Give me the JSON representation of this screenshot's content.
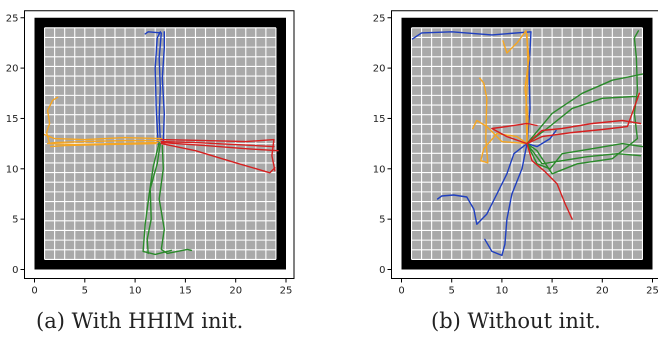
{
  "chart_data": [
    {
      "type": "line",
      "panel": "a",
      "caption": "(a) With HHIM init.",
      "xlim": [
        0,
        25
      ],
      "ylim": [
        0,
        25
      ],
      "xticks": [
        0,
        5,
        10,
        15,
        20,
        25
      ],
      "yticks": [
        0,
        5,
        10,
        15,
        20,
        25
      ],
      "series": [
        {
          "color": "#1f3fbf",
          "trajectories": [
            [
              [
                12.5,
                12.8
              ],
              [
                12.4,
                15
              ],
              [
                12.5,
                18
              ],
              [
                12.4,
                21
              ],
              [
                12.6,
                23.5
              ],
              [
                11.3,
                23.6
              ],
              [
                11.0,
                23.4
              ]
            ],
            [
              [
                12.8,
                12.6
              ],
              [
                12.9,
                15.5
              ],
              [
                12.7,
                19
              ],
              [
                12.9,
                22
              ],
              [
                12.9,
                23.6
              ]
            ],
            [
              [
                12.3,
                12.4
              ],
              [
                12.1,
                16
              ],
              [
                12.0,
                20
              ],
              [
                12.2,
                23.0
              ],
              [
                12.5,
                23.6
              ]
            ]
          ]
        },
        {
          "color": "#f5a623",
          "trajectories": [
            [
              [
                12.5,
                12.8
              ],
              [
                9,
                12.8
              ],
              [
                5,
                12.7
              ],
              [
                2,
                12.6
              ],
              [
                1.3,
                12.5
              ]
            ],
            [
              [
                12.3,
                12.6
              ],
              [
                8,
                12.5
              ],
              [
                4,
                12.4
              ],
              [
                1.5,
                12.5
              ],
              [
                1.2,
                13.6
              ],
              [
                1.5,
                14.5
              ],
              [
                1.3,
                15.8
              ],
              [
                1.8,
                16.8
              ],
              [
                2.3,
                17.1
              ]
            ],
            [
              [
                12.6,
                13.0
              ],
              [
                9,
                13.1
              ],
              [
                5,
                12.9
              ],
              [
                2,
                13.0
              ],
              [
                1.0,
                13.4
              ]
            ],
            [
              [
                12.1,
                12.5
              ],
              [
                7,
                12.4
              ],
              [
                3,
                12.3
              ],
              [
                1.6,
                12.2
              ]
            ]
          ]
        },
        {
          "color": "#2a8a2a",
          "trajectories": [
            [
              [
                12.5,
                12.5
              ],
              [
                12.2,
                10.5
              ],
              [
                11.5,
                8
              ],
              [
                11.6,
                5
              ],
              [
                11.2,
                3
              ],
              [
                11.3,
                1.6
              ]
            ],
            [
              [
                12.7,
                12.3
              ],
              [
                12.8,
                10
              ],
              [
                12.4,
                7
              ],
              [
                12.9,
                4
              ],
              [
                12.6,
                2
              ],
              [
                13.2,
                1.6
              ],
              [
                15.2,
                2.0
              ],
              [
                15.6,
                1.9
              ]
            ],
            [
              [
                12.4,
                12.6
              ],
              [
                11.8,
                10.2
              ],
              [
                11.4,
                7.5
              ],
              [
                11.0,
                4.5
              ],
              [
                10.8,
                1.8
              ],
              [
                12.0,
                1.5
              ],
              [
                13.6,
                1.9
              ]
            ]
          ]
        },
        {
          "color": "#d62020",
          "trajectories": [
            [
              [
                12.6,
                12.7
              ],
              [
                16,
                12.6
              ],
              [
                20,
                12.4
              ],
              [
                23.8,
                12.2
              ]
            ],
            [
              [
                12.6,
                12.5
              ],
              [
                16,
                11.8
              ],
              [
                20,
                10.6
              ],
              [
                23.4,
                9.6
              ],
              [
                23.9,
                10.1
              ]
            ],
            [
              [
                12.6,
                12.9
              ],
              [
                17,
                12.8
              ],
              [
                21,
                12.7
              ],
              [
                23.8,
                12.9
              ],
              [
                23.6,
                11.3
              ],
              [
                23.9,
                9.8
              ]
            ],
            [
              [
                12.6,
                12.6
              ],
              [
                17,
                12.3
              ],
              [
                21,
                12.0
              ],
              [
                24.2,
                11.8
              ]
            ]
          ]
        }
      ]
    },
    {
      "type": "line",
      "panel": "b",
      "caption": "(b) Without init.",
      "xlim": [
        0,
        25
      ],
      "ylim": [
        0,
        25
      ],
      "xticks": [
        0,
        5,
        10,
        15,
        20,
        25
      ],
      "yticks": [
        0,
        5,
        10,
        15,
        20,
        25
      ],
      "series": [
        {
          "color": "#1f3fbf",
          "trajectories": [
            [
              [
                12.5,
                12.5
              ],
              [
                11.2,
                11.5
              ],
              [
                10.5,
                9.5
              ],
              [
                9.5,
                7.5
              ],
              [
                8.5,
                5.5
              ],
              [
                7.5,
                4.5
              ],
              [
                7.2,
                6.0
              ],
              [
                6.5,
                7.2
              ],
              [
                5.2,
                7.4
              ],
              [
                4.0,
                7.3
              ],
              [
                3.6,
                7.0
              ]
            ],
            [
              [
                12.5,
                12.5
              ],
              [
                12.0,
                10
              ],
              [
                11.0,
                7.5
              ],
              [
                10.5,
                5
              ],
              [
                10.3,
                2.5
              ],
              [
                10.0,
                1.4
              ],
              [
                9.0,
                1.8
              ],
              [
                8.3,
                3.0
              ]
            ],
            [
              [
                12.5,
                12.5
              ],
              [
                12.8,
                16
              ],
              [
                12.7,
                20
              ],
              [
                12.9,
                23.6
              ],
              [
                9,
                23.3
              ],
              [
                5,
                23.6
              ],
              [
                2,
                23.5
              ],
              [
                1.1,
                22.9
              ]
            ],
            [
              [
                12.5,
                12.5
              ],
              [
                13.5,
                12.2
              ],
              [
                14.8,
                13.0
              ],
              [
                15.4,
                13.8
              ]
            ]
          ]
        },
        {
          "color": "#f5a623",
          "trajectories": [
            [
              [
                12.5,
                12.5
              ],
              [
                12.6,
                15
              ],
              [
                12.3,
                18
              ],
              [
                12.7,
                21
              ],
              [
                12.4,
                23.7
              ],
              [
                11.5,
                22.5
              ],
              [
                10.5,
                21.5
              ],
              [
                10.1,
                22.7
              ]
            ],
            [
              [
                12.5,
                12.5
              ],
              [
                10,
                12.7
              ],
              [
                8.5,
                14.2
              ],
              [
                7.5,
                14.8
              ],
              [
                7.1,
                14.0
              ]
            ],
            [
              [
                12.5,
                12.5
              ],
              [
                11.5,
                13.2
              ],
              [
                9.5,
                13.5
              ],
              [
                8.2,
                12.0
              ],
              [
                7.9,
                10.8
              ],
              [
                8.6,
                10.6
              ],
              [
                8.4,
                13.0
              ],
              [
                8.5,
                17.0
              ],
              [
                8.2,
                18.5
              ],
              [
                7.8,
                19.0
              ]
            ],
            [
              [
                12.5,
                12.5
              ],
              [
                12.4,
                16
              ],
              [
                12.6,
                20
              ],
              [
                12.5,
                23.4
              ]
            ]
          ]
        },
        {
          "color": "#2a8a2a",
          "trajectories": [
            [
              [
                12.5,
                12.5
              ],
              [
                14.5,
                14.0
              ],
              [
                17,
                16.0
              ],
              [
                20,
                17.0
              ],
              [
                23.5,
                17.2
              ]
            ],
            [
              [
                12.5,
                12.5
              ],
              [
                15,
                15.5
              ],
              [
                18,
                17.5
              ],
              [
                21,
                18.8
              ],
              [
                24.0,
                19.4
              ]
            ],
            [
              [
                12.5,
                12.5
              ],
              [
                14.0,
                10.5
              ],
              [
                16.0,
                10.8
              ],
              [
                18.5,
                11.2
              ],
              [
                21.5,
                11.5
              ],
              [
                23.8,
                11.3
              ]
            ],
            [
              [
                12.5,
                12.5
              ],
              [
                13.5,
                11.8
              ],
              [
                15.0,
                9.5
              ],
              [
                17.5,
                10.5
              ],
              [
                21.0,
                11.0
              ],
              [
                23.5,
                13.0
              ],
              [
                23.2,
                15.5
              ],
              [
                23.5,
                17.8
              ],
              [
                23.4,
                21.0
              ],
              [
                23.2,
                23.0
              ],
              [
                23.6,
                23.7
              ]
            ],
            [
              [
                12.5,
                12.5
              ],
              [
                13.5,
                10.5
              ],
              [
                14.8,
                10.0
              ],
              [
                16.0,
                11.5
              ],
              [
                19.0,
                12.0
              ],
              [
                22.0,
                12.5
              ],
              [
                24.0,
                12.2
              ]
            ]
          ]
        },
        {
          "color": "#d62020",
          "trajectories": [
            [
              [
                12.5,
                12.5
              ],
              [
                14.0,
                13.8
              ],
              [
                16.0,
                14.0
              ],
              [
                19.0,
                14.5
              ],
              [
                22.0,
                14.8
              ],
              [
                23.8,
                14.5
              ]
            ],
            [
              [
                12.5,
                12.5
              ],
              [
                13.0,
                10.8
              ],
              [
                14.2,
                9.8
              ],
              [
                15.5,
                8.5
              ],
              [
                16.3,
                6.5
              ],
              [
                17.0,
                5.0
              ]
            ],
            [
              [
                12.5,
                12.5
              ],
              [
                14.0,
                13.2
              ],
              [
                17.0,
                13.6
              ],
              [
                20.0,
                13.9
              ],
              [
                22.5,
                14.2
              ],
              [
                23.7,
                17.5
              ]
            ],
            [
              [
                12.5,
                12.5
              ],
              [
                10.5,
                13.2
              ],
              [
                9.0,
                14.0
              ],
              [
                10.5,
                14.2
              ],
              [
                12.5,
                14.5
              ],
              [
                13.5,
                14.3
              ]
            ]
          ]
        }
      ]
    }
  ]
}
